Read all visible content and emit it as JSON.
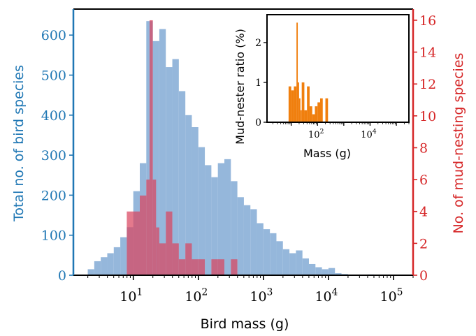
{
  "chart_data": [
    {
      "type": "bar",
      "role": "main",
      "xlabel": "Bird mass (g)",
      "ylabel_left": "Total no. of bird species",
      "ylabel_right": "No. of mud-nesting species",
      "xscale": "log",
      "xlim": [
        1.2,
        200000
      ],
      "ylim_left": [
        0,
        665
      ],
      "ylim_right": [
        0,
        16.7
      ],
      "x_ticks": [
        {
          "value": 10,
          "label": "10^1"
        },
        {
          "value": 100,
          "label": "10^2"
        },
        {
          "value": 1000,
          "label": "10^3"
        },
        {
          "value": 10000,
          "label": "10^4"
        },
        {
          "value": 100000,
          "label": "10^5"
        }
      ],
      "y_ticks_left": [
        0,
        100,
        200,
        300,
        400,
        500,
        600
      ],
      "y_ticks_right": [
        0,
        2,
        4,
        6,
        8,
        10,
        12,
        14,
        16
      ],
      "colors": {
        "total": "#8fb3d9",
        "mud": "#d9455f",
        "left_axis": "#1f77b4",
        "right_axis": "#d62728"
      },
      "series": [
        {
          "axis": "left",
          "bin_edges_log10": [
            0.3,
            0.4,
            0.5,
            0.6,
            0.7,
            0.8,
            0.9,
            1.0,
            1.1,
            1.2,
            1.3,
            1.4,
            1.5,
            1.6,
            1.7,
            1.8,
            1.9,
            2.0,
            2.1,
            2.2,
            2.3,
            2.4,
            2.5,
            2.6,
            2.7,
            2.8,
            2.9,
            3.0,
            3.1,
            3.2,
            3.3,
            3.4,
            3.5,
            3.6,
            3.7,
            3.8,
            3.9,
            4.0,
            4.1,
            4.2,
            4.3,
            4.4,
            4.5,
            4.6,
            4.7,
            4.8,
            4.9,
            5.0,
            5.1
          ],
          "values": [
            15,
            35,
            45,
            55,
            70,
            95,
            120,
            210,
            280,
            635,
            585,
            615,
            520,
            540,
            460,
            400,
            370,
            320,
            275,
            245,
            280,
            290,
            235,
            195,
            175,
            165,
            130,
            115,
            105,
            85,
            65,
            55,
            62,
            42,
            28,
            20,
            15,
            18,
            5,
            3,
            1,
            1,
            1,
            2,
            1,
            1,
            1,
            1
          ]
        },
        {
          "axis": "right",
          "bin_edges_log10": [
            0.9,
            1.1,
            1.2,
            1.25,
            1.3,
            1.35,
            1.4,
            1.5,
            1.6,
            1.7,
            1.8,
            1.9,
            2.0,
            2.1,
            2.2,
            2.3,
            2.4,
            2.5,
            2.6
          ],
          "values": [
            4,
            5,
            6,
            16,
            6,
            3,
            2,
            4,
            2,
            1,
            2,
            1,
            1,
            0,
            1,
            1,
            0,
            1
          ]
        }
      ]
    },
    {
      "type": "bar",
      "role": "inset",
      "xlabel": "Mass (g)",
      "ylabel": "Mud-nester ratio (%)",
      "xscale": "log",
      "xlim": [
        1.2,
        300000
      ],
      "ylim": [
        0,
        2.7
      ],
      "x_ticks": [
        {
          "value": 100,
          "label": "10^2"
        },
        {
          "value": 10000,
          "label": "10^4"
        }
      ],
      "y_ticks": [
        0,
        1,
        2
      ],
      "color": "#f07f0e",
      "bin_edges_log10": [
        0.9,
        1.0,
        1.1,
        1.2,
        1.25,
        1.3,
        1.35,
        1.4,
        1.5,
        1.6,
        1.7,
        1.8,
        1.9,
        2.0,
        2.1,
        2.2,
        2.3,
        2.4,
        2.5,
        2.6
      ],
      "values": [
        0.9,
        0.8,
        0.9,
        2.5,
        1.0,
        0.6,
        0.3,
        1.0,
        0.3,
        0.9,
        0.4,
        0.2,
        0.4,
        0.5,
        0.6,
        0.0,
        0.6,
        0.0,
        0.0
      ]
    }
  ]
}
